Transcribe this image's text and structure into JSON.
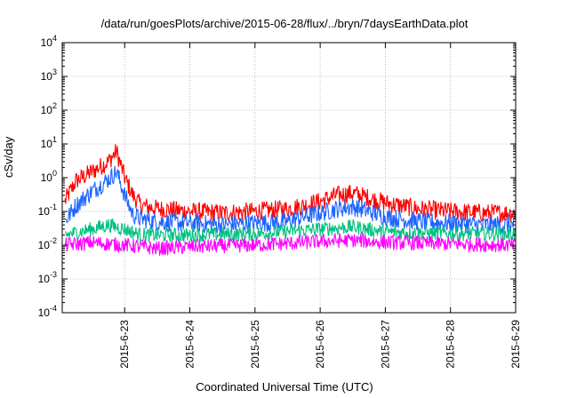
{
  "chart_data": {
    "type": "line",
    "title": "/data/run/goesPlots/archive/2015-06-28/flux/../bryn/7daysEarthData.plot",
    "xlabel": "Coordinated Universal Time (UTC)",
    "ylabel": "cSv/day",
    "yscale": "log",
    "ylim": [
      0.0001,
      10000
    ],
    "xlim": [
      "2015-06-22T01:00",
      "2015-06-29T00:00"
    ],
    "grid": true,
    "legend": "none",
    "yticks": [
      {
        "base": "10",
        "exp": "-4",
        "value": 0.0001
      },
      {
        "base": "10",
        "exp": "-3",
        "value": 0.001
      },
      {
        "base": "10",
        "exp": "-2",
        "value": 0.01
      },
      {
        "base": "10",
        "exp": "-1",
        "value": 0.1
      },
      {
        "base": "10",
        "exp": "0",
        "value": 1
      },
      {
        "base": "10",
        "exp": "1",
        "value": 10
      },
      {
        "base": "10",
        "exp": "2",
        "value": 100
      },
      {
        "base": "10",
        "exp": "3",
        "value": 1000
      },
      {
        "base": "10",
        "exp": "4",
        "value": 10000
      }
    ],
    "xticks": [
      "2015-6-23",
      "2015-6-24",
      "2015-6-25",
      "2015-6-26",
      "2015-6-27",
      "2015-6-28",
      "2015-6-29"
    ],
    "series": [
      {
        "color": "#ff0000",
        "x": [
          "2015-06-22T02:00",
          "2015-06-22T06:00",
          "2015-06-22T12:00",
          "2015-06-22T18:00",
          "2015-06-22T21:00",
          "2015-06-23T00:00",
          "2015-06-23T03:00",
          "2015-06-23T06:00",
          "2015-06-23T12:00",
          "2015-06-24T00:00",
          "2015-06-24T12:00",
          "2015-06-25T00:00",
          "2015-06-25T12:00",
          "2015-06-25T18:00",
          "2015-06-26T00:00",
          "2015-06-26T06:00",
          "2015-06-26T12:00",
          "2015-06-26T18:00",
          "2015-06-27T00:00",
          "2015-06-27T12:00",
          "2015-06-28T00:00",
          "2015-06-28T12:00",
          "2015-06-29T00:00"
        ],
        "y": [
          0.2,
          0.8,
          1.5,
          3,
          6,
          1,
          0.3,
          0.15,
          0.12,
          0.1,
          0.09,
          0.1,
          0.12,
          0.15,
          0.2,
          0.3,
          0.35,
          0.25,
          0.18,
          0.12,
          0.1,
          0.09,
          0.09
        ]
      },
      {
        "color": "#1e64ff",
        "x": [
          "2015-06-22T02:00",
          "2015-06-22T06:00",
          "2015-06-22T12:00",
          "2015-06-22T18:00",
          "2015-06-22T21:00",
          "2015-06-23T00:00",
          "2015-06-23T03:00",
          "2015-06-23T06:00",
          "2015-06-23T12:00",
          "2015-06-24T00:00",
          "2015-06-24T12:00",
          "2015-06-25T00:00",
          "2015-06-25T12:00",
          "2015-06-25T18:00",
          "2015-06-26T00:00",
          "2015-06-26T06:00",
          "2015-06-26T12:00",
          "2015-06-26T18:00",
          "2015-06-27T00:00",
          "2015-06-27T12:00",
          "2015-06-28T00:00",
          "2015-06-28T12:00",
          "2015-06-29T00:00"
        ],
        "y": [
          0.05,
          0.15,
          0.4,
          0.9,
          1.5,
          0.3,
          0.08,
          0.06,
          0.05,
          0.045,
          0.04,
          0.045,
          0.05,
          0.07,
          0.09,
          0.12,
          0.14,
          0.1,
          0.07,
          0.05,
          0.045,
          0.04,
          0.04
        ]
      },
      {
        "color": "#00c080",
        "x": [
          "2015-06-22T02:00",
          "2015-06-22T12:00",
          "2015-06-22T18:00",
          "2015-06-23T00:00",
          "2015-06-23T06:00",
          "2015-06-24T00:00",
          "2015-06-25T00:00",
          "2015-06-26T00:00",
          "2015-06-26T12:00",
          "2015-06-27T00:00",
          "2015-06-28T00:00",
          "2015-06-29T00:00"
        ],
        "y": [
          0.02,
          0.03,
          0.04,
          0.03,
          0.02,
          0.02,
          0.022,
          0.03,
          0.035,
          0.025,
          0.022,
          0.022
        ]
      },
      {
        "color": "#ff00ff",
        "x": [
          "2015-06-22T02:00",
          "2015-06-22T12:00",
          "2015-06-23T00:00",
          "2015-06-23T12:00",
          "2015-06-24T00:00",
          "2015-06-25T00:00",
          "2015-06-25T18:00",
          "2015-06-26T00:00",
          "2015-06-26T12:00",
          "2015-06-27T00:00",
          "2015-06-28T00:00",
          "2015-06-29T00:00"
        ],
        "y": [
          0.01,
          0.012,
          0.01,
          0.008,
          0.009,
          0.01,
          0.012,
          0.013,
          0.014,
          0.012,
          0.011,
          0.01
        ]
      }
    ]
  }
}
